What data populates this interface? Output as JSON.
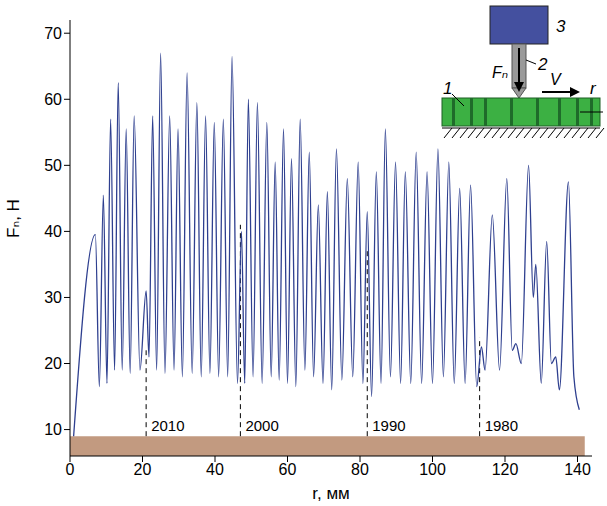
{
  "chart_data": {
    "type": "line",
    "x_label": "r, мм",
    "y_label": "Fₙ, Н",
    "color": "#2e3f8f",
    "grid": false,
    "xlim": [
      0,
      144
    ],
    "xticks": [
      0,
      20,
      40,
      60,
      80,
      100,
      120,
      140
    ],
    "ylim": [
      6,
      72
    ],
    "yticks": [
      10,
      20,
      30,
      40,
      50,
      60,
      70
    ],
    "x": [
      1.0,
      7.0,
      8.1,
      9.2,
      10.2,
      11.2,
      12.3,
      13.3,
      14.4,
      15.5,
      16.6,
      17.7,
      19.3,
      21.0,
      21.8,
      22.8,
      23.9,
      25.0,
      26.2,
      27.5,
      28.7,
      29.8,
      31.0,
      32.3,
      33.7,
      35.0,
      36.2,
      37.4,
      38.6,
      39.8,
      41.0,
      42.3,
      43.5,
      44.7,
      46.2,
      47.3,
      48.2,
      49.2,
      50.5,
      51.7,
      53.0,
      54.3,
      55.5,
      56.6,
      57.7,
      58.9,
      60.0,
      61.1,
      62.3,
      63.5,
      64.8,
      66.0,
      67.2,
      68.5,
      69.8,
      71.0,
      72.2,
      73.5,
      75.0,
      76.5,
      78.0,
      79.5,
      80.8,
      82.0,
      83.2,
      84.5,
      85.8,
      87.0,
      88.4,
      89.8,
      91.2,
      92.5,
      94.0,
      95.5,
      97.0,
      98.5,
      100.0,
      101.5,
      103.0,
      104.5,
      106.0,
      107.5,
      109.0,
      110.5,
      112.2,
      113.5,
      114.5,
      116.5,
      118.5,
      120.5,
      122.0,
      123.0,
      124.5,
      126.5,
      127.8,
      128.5,
      130.0,
      131.5,
      132.8,
      134.0,
      135.0,
      137.5,
      139.0,
      140.5
    ],
    "values": [
      9,
      39.5,
      16.5,
      45.5,
      17,
      57,
      19,
      62.5,
      19,
      55.5,
      18.5,
      57.5,
      19,
      31,
      21,
      57.5,
      19,
      67,
      18.5,
      57.5,
      19,
      55.5,
      18,
      64,
      18.5,
      59.5,
      18,
      57.5,
      18.5,
      56.5,
      18,
      57,
      18,
      66.5,
      17,
      40,
      17,
      60,
      18,
      59.5,
      17,
      56.5,
      18,
      50.5,
      17.5,
      55.5,
      17,
      51,
      16.5,
      57,
      19,
      52,
      18,
      44,
      17,
      46,
      16,
      52.5,
      17.5,
      48,
      18,
      50.5,
      17,
      43,
      15,
      49,
      17,
      55.5,
      18,
      50.5,
      17,
      49,
      17,
      52,
      17,
      49,
      17,
      52.5,
      18,
      50.5,
      17,
      46.5,
      17,
      47,
      16.5,
      22.5,
      19,
      42.5,
      19,
      48,
      22,
      23,
      20,
      50,
      30,
      35,
      17,
      38.5,
      20,
      21,
      16,
      47.5,
      18,
      13
    ],
    "annotations": [
      {
        "text": "2010",
        "x": 21,
        "y": [
          9,
          22
        ]
      },
      {
        "text": "2000",
        "x": 47,
        "y": [
          9,
          41
        ]
      },
      {
        "text": "1990",
        "x": 82,
        "y": [
          9,
          37
        ]
      },
      {
        "text": "1980",
        "x": 113,
        "y": [
          9,
          24
        ]
      }
    ],
    "wood_image": {
      "x": [
        0,
        142
      ],
      "y": [
        6,
        9
      ],
      "color": "#c29a80"
    },
    "inset": {
      "labels": {
        "specimen": "1",
        "indenter": "2",
        "sensor": "3",
        "force": "Fₙ",
        "velocity": "V",
        "axis": "r"
      }
    }
  }
}
